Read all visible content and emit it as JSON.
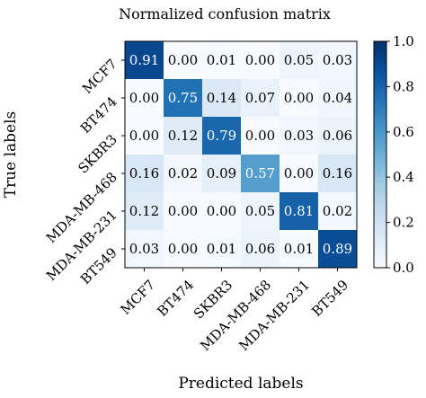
{
  "chart_data": {
    "type": "heatmap",
    "title": "Normalized confusion matrix",
    "xlabel": "Predicted labels",
    "ylabel": "True labels",
    "x_categories": [
      "MCF7",
      "BT474",
      "SKBR3",
      "MDA-MB-468",
      "MDA-MB-231",
      "BT549"
    ],
    "y_categories": [
      "MCF7",
      "BT474",
      "SKBR3",
      "MDA-MB-468",
      "MDA-MB-231",
      "BT549"
    ],
    "values": [
      [
        0.91,
        0.0,
        0.01,
        0.0,
        0.05,
        0.03
      ],
      [
        0.0,
        0.75,
        0.14,
        0.07,
        0.0,
        0.04
      ],
      [
        0.0,
        0.12,
        0.79,
        0.0,
        0.03,
        0.06
      ],
      [
        0.16,
        0.02,
        0.09,
        0.57,
        0.0,
        0.16
      ],
      [
        0.12,
        0.0,
        0.0,
        0.05,
        0.81,
        0.02
      ],
      [
        0.03,
        0.0,
        0.01,
        0.06,
        0.01,
        0.89
      ]
    ],
    "value_labels": [
      [
        "0.91",
        "0.00",
        "0.01",
        "0.00",
        "0.05",
        "0.03"
      ],
      [
        "0.00",
        "0.75",
        "0.14",
        "0.07",
        "0.00",
        "0.04"
      ],
      [
        "0.00",
        "0.12",
        "0.79",
        "0.00",
        "0.03",
        "0.06"
      ],
      [
        "0.16",
        "0.02",
        "0.09",
        "0.57",
        "0.00",
        "0.16"
      ],
      [
        "0.12",
        "0.00",
        "0.00",
        "0.05",
        "0.81",
        "0.02"
      ],
      [
        "0.03",
        "0.00",
        "0.01",
        "0.06",
        "0.01",
        "0.89"
      ]
    ],
    "colorbar": {
      "range": [
        0.0,
        1.0
      ],
      "ticks": [
        "0.0",
        "0.2",
        "0.4",
        "0.6",
        "0.8",
        "1.0"
      ],
      "colormap": "Blues",
      "low_color": "#f7fbff",
      "high_color": "#08306b"
    }
  }
}
